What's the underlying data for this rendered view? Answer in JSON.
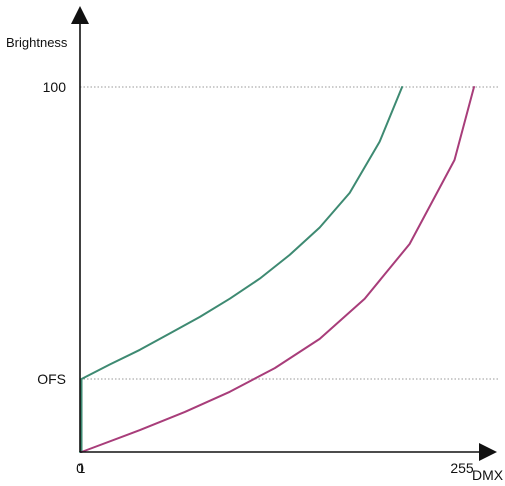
{
  "chart_data": {
    "type": "line",
    "title": "",
    "xlabel": "DMX",
    "ylabel": "Brightness",
    "x_ticks": [
      "0",
      "1",
      "255"
    ],
    "y_ticks": [
      "OFS",
      "100"
    ],
    "grid": false,
    "guide_lines": [
      "OFS",
      "100"
    ],
    "xlim": [
      0,
      275
    ],
    "ylim": [
      0,
      100
    ],
    "ofs_value": 20,
    "series": [
      {
        "color": "#3e8a72",
        "x": [
          0,
          1,
          1,
          20,
          40,
          60,
          80,
          100,
          120,
          140,
          160,
          180,
          200,
          215
        ],
        "y": [
          0,
          0,
          20,
          24,
          28,
          32.5,
          37,
          42,
          47.5,
          54,
          61.5,
          71,
          85,
          100
        ]
      },
      {
        "color": "#a83d7a",
        "x": [
          1,
          40,
          70,
          100,
          130,
          160,
          190,
          220,
          250,
          263
        ],
        "y": [
          0,
          6,
          11,
          16.5,
          23,
          31,
          42,
          57,
          80,
          100
        ]
      }
    ]
  }
}
